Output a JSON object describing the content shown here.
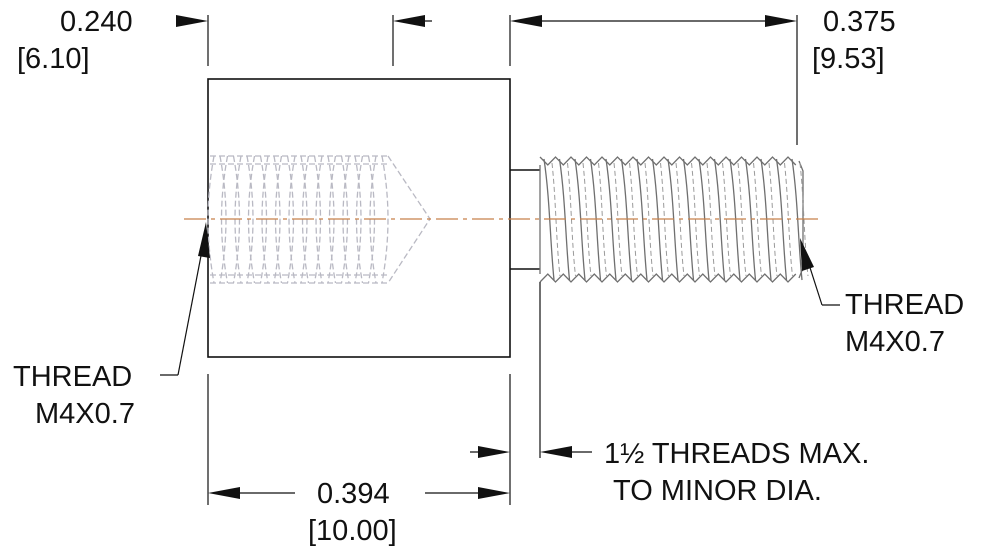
{
  "dimensions": {
    "bore_depth": {
      "inch": "0.240",
      "mm": "[6.10]"
    },
    "stud_length": {
      "inch": "0.375",
      "mm": "[9.53]"
    },
    "body_length": {
      "inch": "0.394",
      "mm": "[10.00]"
    }
  },
  "callouts": {
    "internal_thread": {
      "line1": "THREAD",
      "line2": "M4X0.7"
    },
    "external_thread": {
      "line1": "THREAD",
      "line2": "M4X0.7"
    },
    "thread_note": {
      "line1": "1½ THREADS MAX.",
      "line2": "TO MINOR DIA."
    }
  },
  "colors": {
    "line": "#111111",
    "centerline": "#c8814a",
    "hidden": "#b9b9c3"
  }
}
